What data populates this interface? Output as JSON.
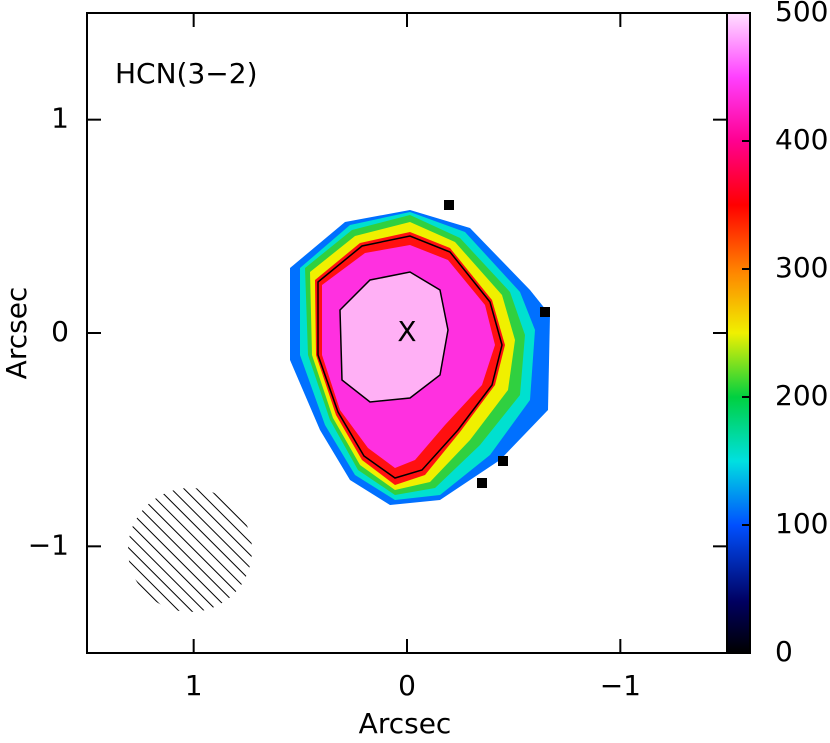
{
  "chart_data": {
    "type": "heatmap",
    "title": "HCN(3−2)",
    "x_label": "Arcsec",
    "y_label": "Arcsec",
    "xlim": [
      1.5,
      -1.5
    ],
    "xticks": [
      1,
      0,
      {
        "value": -1,
        "label": "−1"
      }
    ],
    "ylim": [
      -1.5,
      1.5
    ],
    "yticks": [
      {
        "value": -1,
        "label": "−1"
      },
      0,
      1
    ],
    "colorbar": {
      "lim": [
        0,
        500
      ],
      "ticks": [
        0,
        100,
        200,
        300,
        400,
        500
      ]
    },
    "marker": {
      "label": "X",
      "x": 0,
      "y": 0
    }
  }
}
